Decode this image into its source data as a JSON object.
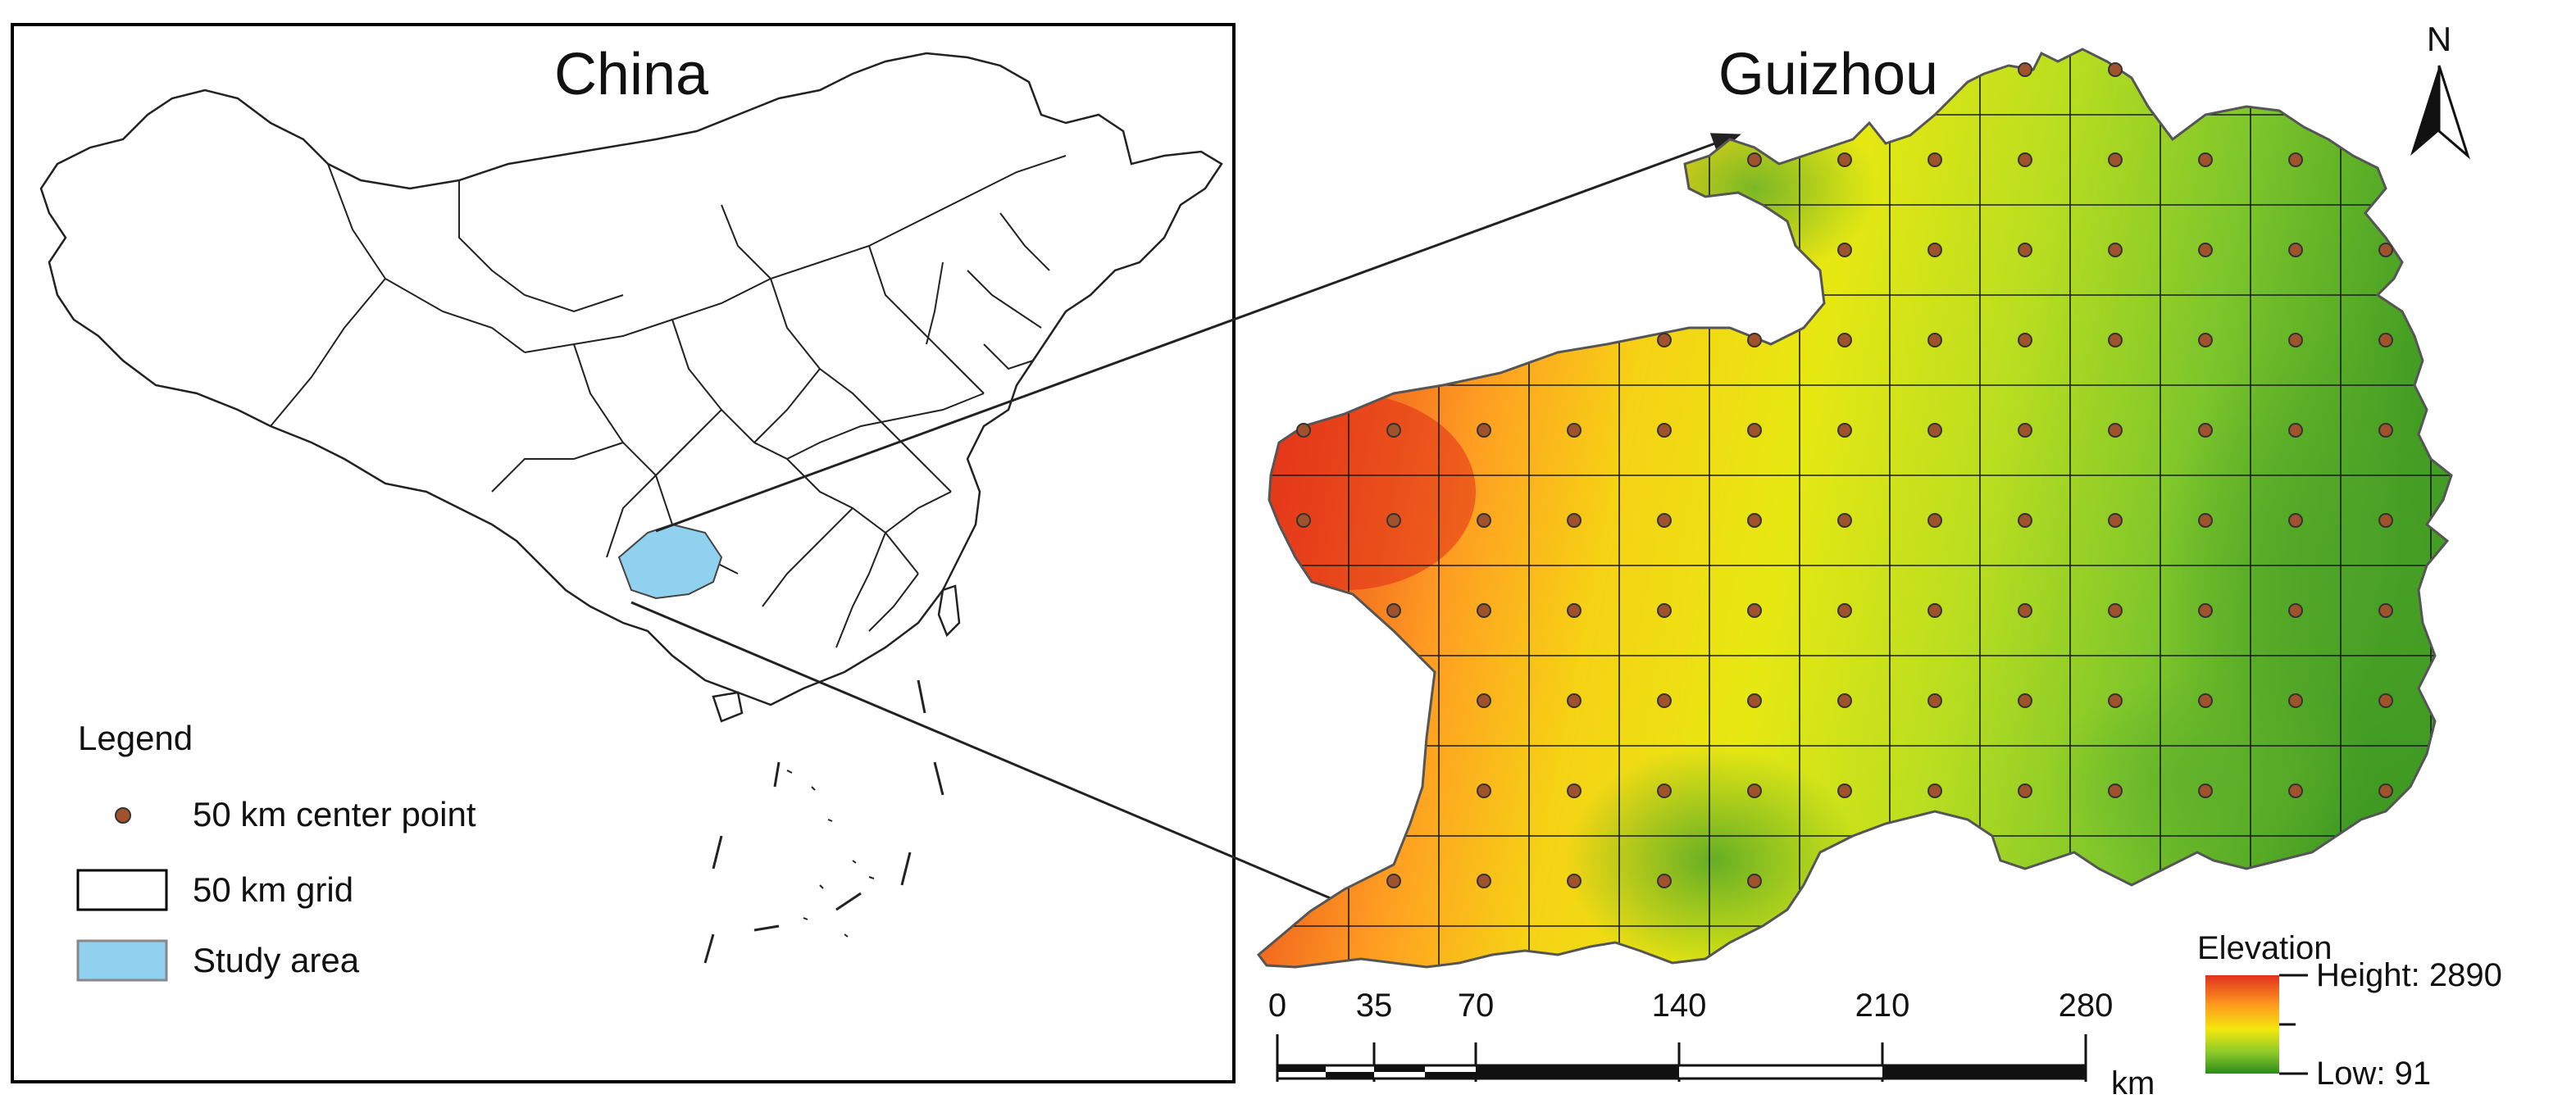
{
  "china_panel": {
    "title": "China"
  },
  "guizhou_panel": {
    "title": "Guizhou"
  },
  "north_arrow": {
    "label": "N",
    "icon": "north-arrow-icon"
  },
  "legend": {
    "title": "Legend",
    "items": [
      {
        "label": "50 km center point",
        "icon": "center-point-icon"
      },
      {
        "label": "50 km grid",
        "icon": "grid-cell-icon"
      },
      {
        "label": "Study area",
        "icon": "study-area-icon"
      }
    ]
  },
  "elevation_legend": {
    "title": "Elevation",
    "high_label": "Height: 2890",
    "low_label": "Low: 91",
    "colors": [
      "#e0301e",
      "#ff9a1f",
      "#f3e70c",
      "#8ecb2a",
      "#2f8a1e"
    ]
  },
  "scale_bar": {
    "ticks": [
      "0",
      "35",
      "70",
      "140",
      "210",
      "280"
    ],
    "unit": "km"
  },
  "colors": {
    "study_area": "#8fd1ee",
    "center_point": "#a0522d",
    "grid_line": "#1a1a1a",
    "border": "#000000"
  }
}
